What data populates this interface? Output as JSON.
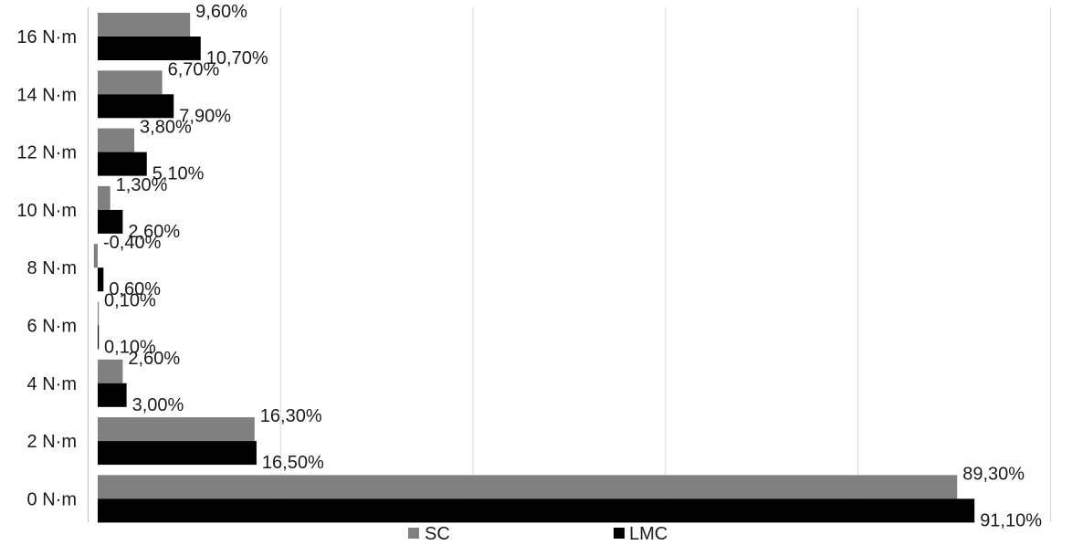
{
  "chart_data": {
    "type": "bar",
    "orientation": "horizontal",
    "categories": [
      "0 N·m",
      "2 N·m",
      "4 N·m",
      "6 N·m",
      "8 N·m",
      "10 N·m",
      "12 N·m",
      "14 N·m",
      "16 N·m"
    ],
    "series": [
      {
        "name": "SC",
        "color": "#808080",
        "values": [
          89.3,
          16.3,
          2.6,
          0.1,
          -0.4,
          1.3,
          3.8,
          6.7,
          9.6
        ],
        "labels": [
          "89,30%",
          "16,30%",
          "2,60%",
          "0,10%",
          "-0,40%",
          "1,30%",
          "3,80%",
          "6,70%",
          "9,60%"
        ]
      },
      {
        "name": "LMC",
        "color": "#000000",
        "values": [
          91.1,
          16.5,
          3.0,
          0.1,
          0.6,
          2.6,
          5.1,
          7.9,
          10.7
        ],
        "labels": [
          "91,10%",
          "16,50%",
          "3,00%",
          "0,10%",
          "0,60%",
          "2,60%",
          "5,10%",
          "7,90%",
          "10,70%"
        ]
      }
    ],
    "xlim": [
      -1,
      100
    ],
    "gridlines_x": [
      -1,
      19,
      39,
      59,
      79,
      99
    ],
    "grid": true,
    "legend_position": "bottom",
    "title": "",
    "xlabel": "",
    "ylabel": ""
  }
}
